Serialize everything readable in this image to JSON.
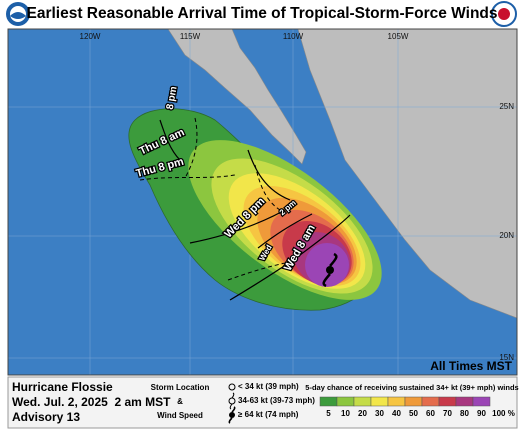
{
  "header": {
    "title": "Earliest Reasonable Arrival Time of Tropical-Storm-Force Winds"
  },
  "map": {
    "longitude_labels": [
      "120W",
      "115W",
      "110W",
      "105W"
    ],
    "latitude_labels": [
      "25N",
      "20N",
      "15N"
    ],
    "arrival_labels": [
      "8 pm",
      "Thu 8 am",
      "Thu 8 pm",
      "Wed 8 pm",
      "2 pm",
      "Wed",
      "Wed 8 am"
    ],
    "time_zone_note": "All Times MST"
  },
  "footer": {
    "storm_name": "Hurricane Flossie",
    "issued": "Wed. Jul. 2, 2025  2 am MST",
    "advisory": "Advisory 13",
    "legend": {
      "heading_1": "Storm Location",
      "heading_2": "&",
      "heading_3": "Wind Speed",
      "entries": [
        "< 34 kt (39 mph)",
        "34-63 kt (39-73 mph)",
        "≥ 64 kt (74 mph)"
      ]
    },
    "scale": {
      "title": "5-day chance of receiving sustained 34+ kt (39+ mph) winds",
      "labels": [
        "5",
        "10",
        "20",
        "30",
        "40",
        "50",
        "60",
        "70",
        "80",
        "90",
        "100 %"
      ],
      "colors": [
        "#3c9b3c",
        "#8cc63f",
        "#c5dc48",
        "#f2e64a",
        "#f6c542",
        "#ef9a3a",
        "#e46c4c",
        "#c83a4a",
        "#a8377f",
        "#9b45b5"
      ]
    }
  }
}
